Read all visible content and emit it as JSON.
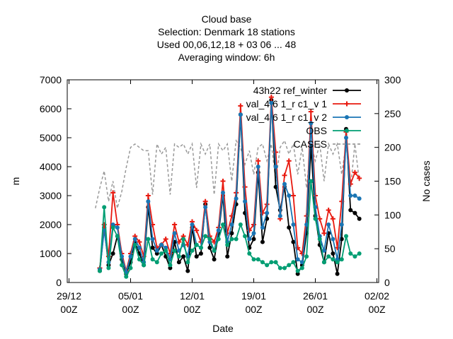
{
  "chart_data": {
    "type": "line",
    "title_lines": [
      "Cloud base",
      "Selection: Denmark      18 stations",
      "Used  00,06,12,18  + 03 06 ... 48",
      "Averaging window:  6h"
    ],
    "xlabel": "Date",
    "ylabel": "m",
    "y2label": "No cases",
    "xlim": [
      0,
      34
    ],
    "ylim": [
      0,
      7000
    ],
    "y2lim": [
      0,
      300
    ],
    "x_ticks": [
      {
        "x": 0,
        "line1": "29/12",
        "line2": "00Z"
      },
      {
        "x": 7,
        "line1": "05/01",
        "line2": "00Z"
      },
      {
        "x": 14,
        "line1": "12/01",
        "line2": "00Z"
      },
      {
        "x": 21,
        "line1": "19/01",
        "line2": "00Z"
      },
      {
        "x": 28,
        "line1": "26/01",
        "line2": "00Z"
      },
      {
        "x": 35,
        "line1": "02/02",
        "line2": "00Z"
      }
    ],
    "y_ticks": [
      0,
      1000,
      2000,
      3000,
      4000,
      5000,
      6000,
      7000
    ],
    "y2_ticks": [
      0,
      50,
      100,
      150,
      200,
      250,
      300
    ],
    "legend_position": "top-right",
    "legend": [
      {
        "label": "43h22 ref_winter",
        "base": "43h22 ref",
        "sub": "w",
        "tail": "inter",
        "color": "#000000",
        "marker": "circle"
      },
      {
        "label": "val_4 6 1_r c1_v 1",
        "color": "#e8190f",
        "marker": "plus"
      },
      {
        "label": "val_4 6 1_r c1_v 2",
        "color": "#1a75b4",
        "marker": "circle"
      },
      {
        "label": "OBS",
        "color": "#009e73",
        "marker": "circle"
      },
      {
        "label": "CASES",
        "color": "#999999",
        "marker": "none",
        "dashed": true
      }
    ],
    "series": [
      {
        "name": "43h22 ref_winter",
        "color": "#000000",
        "x": [
          3.5,
          4.0,
          4.5,
          5.0,
          5.5,
          6.0,
          6.5,
          7.0,
          7.5,
          8.0,
          8.5,
          9.0,
          9.5,
          10.0,
          10.5,
          11.0,
          11.5,
          12.0,
          12.5,
          13.0,
          13.5,
          14.0,
          14.5,
          15.0,
          15.5,
          16.0,
          16.5,
          17.0,
          17.5,
          18.0,
          18.5,
          19.0,
          19.5,
          20.0,
          20.5,
          21.0,
          21.5,
          22.0,
          22.5,
          23.0,
          23.5,
          24.0,
          24.5,
          25.0,
          25.5,
          26.0,
          26.5,
          27.0,
          27.5,
          28.0,
          28.5,
          29.0,
          29.5,
          30.0,
          30.5,
          31.0,
          31.5,
          32.0,
          32.5,
          33.0
        ],
        "values": [
          400,
          1900,
          600,
          1000,
          1600,
          800,
          300,
          700,
          1400,
          1000,
          600,
          2600,
          1200,
          1000,
          1300,
          900,
          500,
          1400,
          700,
          900,
          400,
          1900,
          900,
          1000,
          2700,
          1200,
          800,
          1700,
          3000,
          900,
          1700,
          2700,
          5800,
          2400,
          1200,
          1500,
          3800,
          1400,
          2200,
          6300,
          3300,
          2500,
          3300,
          1900,
          1400,
          300,
          600,
          1700,
          4700,
          2300,
          1300,
          700,
          1700,
          1000,
          300,
          1500,
          5300,
          2500,
          2400,
          2200
        ]
      },
      {
        "name": "val_4 6 1_r c1_v 1",
        "color": "#e8190f",
        "x": [
          3.5,
          4.0,
          4.5,
          5.0,
          5.5,
          6.0,
          6.5,
          7.0,
          7.5,
          8.0,
          8.5,
          9.0,
          9.5,
          10.0,
          10.5,
          11.0,
          11.5,
          12.0,
          12.5,
          13.0,
          13.5,
          14.0,
          14.5,
          15.0,
          15.5,
          16.0,
          16.5,
          17.0,
          17.5,
          18.0,
          18.5,
          19.0,
          19.5,
          20.0,
          20.5,
          21.0,
          21.5,
          22.0,
          22.5,
          23.0,
          23.5,
          24.0,
          24.5,
          25.0,
          25.5,
          26.0,
          26.5,
          27.0,
          27.5,
          28.0,
          28.5,
          29.0,
          29.5,
          30.0,
          30.5,
          31.0,
          31.5,
          32.0,
          32.5,
          33.0
        ],
        "values": [
          500,
          2000,
          900,
          3100,
          2000,
          1000,
          400,
          1000,
          1600,
          1400,
          900,
          3000,
          2000,
          1200,
          1300,
          1500,
          1000,
          2000,
          1400,
          1600,
          1300,
          2100,
          1800,
          1400,
          2800,
          1600,
          1400,
          1900,
          3500,
          1700,
          2300,
          3100,
          6100,
          3300,
          1800,
          2000,
          4200,
          2400,
          2700,
          6400,
          4500,
          2200,
          3700,
          4200,
          3000,
          1200,
          1000,
          2300,
          5900,
          3000,
          2200,
          1700,
          2500,
          2200,
          1200,
          2800,
          5200,
          3400,
          3800,
          3600
        ]
      },
      {
        "name": "val_4 6 1_r c1_v 2",
        "color": "#1a75b4",
        "x": [
          3.5,
          4.0,
          4.5,
          5.0,
          5.5,
          6.0,
          6.5,
          7.0,
          7.5,
          8.0,
          8.5,
          9.0,
          9.5,
          10.0,
          10.5,
          11.0,
          11.5,
          12.0,
          12.5,
          13.0,
          13.5,
          14.0,
          14.5,
          15.0,
          15.5,
          16.0,
          16.5,
          17.0,
          17.5,
          18.0,
          18.5,
          19.0,
          19.5,
          20.0,
          20.5,
          21.0,
          21.5,
          22.0,
          22.5,
          23.0,
          23.5,
          24.0,
          24.5,
          25.0,
          25.5,
          26.0,
          26.5,
          27.0,
          27.5,
          28.0,
          28.5,
          29.0,
          29.5,
          30.0,
          30.5,
          31.0,
          31.5,
          32.0,
          32.5,
          33.0
        ],
        "values": [
          450,
          1800,
          700,
          2000,
          1900,
          900,
          350,
          900,
          1500,
          1200,
          700,
          2800,
          1500,
          1100,
          1300,
          1200,
          800,
          1700,
          1100,
          1300,
          900,
          2000,
          1300,
          1200,
          2600,
          1400,
          1100,
          1800,
          3100,
          1400,
          2000,
          2900,
          5800,
          2800,
          1500,
          1700,
          4000,
          1900,
          2400,
          6200,
          4000,
          2300,
          3400,
          3000,
          2000,
          800,
          700,
          2000,
          5500,
          2600,
          1600,
          1100,
          2000,
          1500,
          800,
          2000,
          5000,
          3000,
          3000,
          2900
        ]
      },
      {
        "name": "OBS",
        "color": "#009e73",
        "x": [
          3.5,
          4.0,
          4.5,
          5.0,
          5.5,
          6.0,
          6.5,
          7.0,
          7.5,
          8.0,
          8.5,
          9.0,
          9.5,
          10.0,
          10.5,
          11.0,
          11.5,
          12.0,
          12.5,
          13.0,
          13.5,
          14.0,
          14.5,
          15.0,
          15.5,
          16.0,
          16.5,
          17.0,
          17.5,
          18.0,
          18.5,
          19.0,
          19.5,
          20.0,
          20.5,
          21.0,
          21.5,
          22.0,
          22.5,
          23.0,
          23.5,
          24.0,
          24.5,
          25.0,
          25.5,
          26.0,
          26.5,
          27.0,
          27.5,
          28.0,
          28.5,
          29.0,
          29.5,
          30.0,
          30.5,
          31.0,
          31.5,
          32.0,
          32.5,
          33.0
        ],
        "values": [
          400,
          2600,
          500,
          1900,
          1600,
          600,
          200,
          500,
          1300,
          800,
          600,
          1500,
          800,
          700,
          1000,
          1100,
          600,
          1100,
          900,
          1500,
          700,
          1100,
          1300,
          1200,
          1600,
          1500,
          1100,
          1500,
          2000,
          1300,
          1500,
          1500,
          2000,
          1600,
          1000,
          800,
          800,
          700,
          600,
          700,
          700,
          500,
          500,
          600,
          700,
          400,
          500,
          900,
          3500,
          2200,
          1500,
          700,
          900,
          800,
          700,
          800,
          1600,
          1000,
          900,
          1000
        ]
      },
      {
        "name": "CASES",
        "color": "#999999",
        "dashed": true,
        "x": [
          3.0,
          3.5,
          4.0,
          4.5,
          5.0,
          5.5,
          6.0,
          6.5,
          7.0,
          7.5,
          8.0,
          8.5,
          9.0,
          9.5,
          10.0,
          10.5,
          11.0,
          11.5,
          12.0,
          12.5,
          13.0,
          13.5,
          14.0,
          14.5,
          15.0,
          15.5,
          16.0,
          16.5,
          17.0,
          17.5,
          18.0,
          18.5,
          19.0,
          19.5,
          20.0,
          20.5,
          21.0,
          21.5,
          22.0,
          22.5,
          23.0,
          23.5,
          24.0,
          24.5,
          25.0,
          25.5,
          26.0,
          26.5,
          27.0,
          27.5,
          28.0,
          28.5,
          29.0,
          29.5,
          30.0,
          30.5,
          31.0,
          31.5,
          32.0,
          32.5,
          33.0
        ],
        "values": [
          110,
          140,
          165,
          120,
          150,
          110,
          135,
          170,
          200,
          205,
          200,
          195,
          195,
          130,
          205,
          190,
          200,
          130,
          205,
          200,
          205,
          190,
          205,
          140,
          205,
          190,
          205,
          130,
          205,
          195,
          205,
          150,
          210,
          200,
          175,
          195,
          160,
          200,
          205,
          180,
          205,
          150,
          200,
          210,
          190,
          205,
          160,
          200,
          140,
          205,
          180,
          205,
          150,
          205,
          190,
          205,
          160,
          205,
          140,
          205,
          150
        ]
      }
    ]
  }
}
